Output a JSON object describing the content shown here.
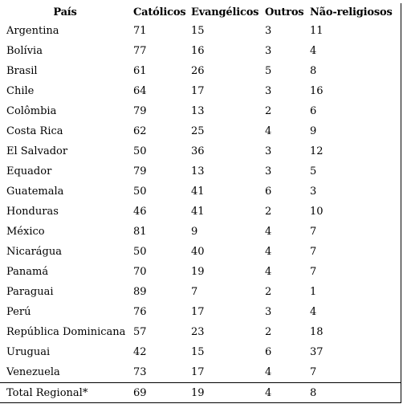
{
  "table": {
    "headers": {
      "country": "País",
      "catholics": "Católicos",
      "evangelicals": "Evangélicos",
      "others": "Outros",
      "nonreligious": "Não-religiosos"
    },
    "rows": [
      {
        "country": "Argentina",
        "catholics": "71",
        "evangelicals": "15",
        "others": "3",
        "nonreligious": "11"
      },
      {
        "country": "Bolívia",
        "catholics": "77",
        "evangelicals": "16",
        "others": "3",
        "nonreligious": "4"
      },
      {
        "country": "Brasil",
        "catholics": "61",
        "evangelicals": "26",
        "others": "5",
        "nonreligious": "8"
      },
      {
        "country": "Chile",
        "catholics": "64",
        "evangelicals": "17",
        "others": "3",
        "nonreligious": "16"
      },
      {
        "country": "Colômbia",
        "catholics": "79",
        "evangelicals": "13",
        "others": "2",
        "nonreligious": "6"
      },
      {
        "country": "Costa Rica",
        "catholics": "62",
        "evangelicals": "25",
        "others": "4",
        "nonreligious": "9"
      },
      {
        "country": "El Salvador",
        "catholics": "50",
        "evangelicals": "36",
        "others": "3",
        "nonreligious": "12"
      },
      {
        "country": "Equador",
        "catholics": "79",
        "evangelicals": "13",
        "others": "3",
        "nonreligious": "5"
      },
      {
        "country": "Guatemala",
        "catholics": "50",
        "evangelicals": "41",
        "others": "6",
        "nonreligious": "3"
      },
      {
        "country": "Honduras",
        "catholics": "46",
        "evangelicals": "41",
        "others": "2",
        "nonreligious": "10"
      },
      {
        "country": "México",
        "catholics": "81",
        "evangelicals": "9",
        "others": "4",
        "nonreligious": "7"
      },
      {
        "country": "Nicarágua",
        "catholics": "50",
        "evangelicals": "40",
        "others": "4",
        "nonreligious": "7"
      },
      {
        "country": "Panamá",
        "catholics": "70",
        "evangelicals": "19",
        "others": "4",
        "nonreligious": "7"
      },
      {
        "country": "Paraguai",
        "catholics": "89",
        "evangelicals": "7",
        "others": "2",
        "nonreligious": "1"
      },
      {
        "country": "Perú",
        "catholics": "76",
        "evangelicals": "17",
        "others": "3",
        "nonreligious": "4"
      },
      {
        "country": "República Dominicana",
        "catholics": "57",
        "evangelicals": "23",
        "others": "2",
        "nonreligious": "18"
      },
      {
        "country": "Uruguai",
        "catholics": "42",
        "evangelicals": "15",
        "others": "6",
        "nonreligious": "37"
      },
      {
        "country": "Venezuela",
        "catholics": "73",
        "evangelicals": "17",
        "others": "4",
        "nonreligious": "7"
      }
    ],
    "total": {
      "country": "Total Regional*",
      "catholics": "69",
      "evangelicals": "19",
      "others": "4",
      "nonreligious": "8"
    }
  }
}
